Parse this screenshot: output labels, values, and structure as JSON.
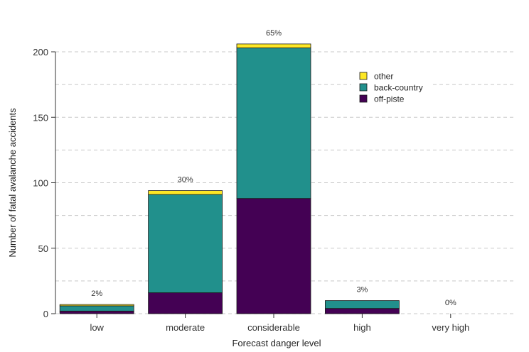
{
  "chart_data": {
    "type": "bar",
    "stacked": true,
    "categories": [
      "low",
      "moderate",
      "considerable",
      "high",
      "very high"
    ],
    "series": [
      {
        "name": "off-piste",
        "color": "#440154",
        "values": [
          2,
          16,
          88,
          4,
          0
        ]
      },
      {
        "name": "back-country",
        "color": "#21908C",
        "values": [
          4,
          75,
          115,
          6,
          0
        ]
      },
      {
        "name": "other",
        "color": "#FDE725",
        "values": [
          1,
          3,
          3,
          0,
          0
        ]
      }
    ],
    "percent_labels": [
      "2%",
      "30%",
      "65%",
      "3%",
      "0%"
    ],
    "xlabel": "Forecast danger level",
    "ylabel": "Number of fatal avalanche accidents",
    "ylim": [
      0,
      210
    ],
    "yticks": [
      0,
      50,
      100,
      150,
      200
    ],
    "grid": true,
    "legend_position": "top-right",
    "legend_order": [
      "other",
      "back-country",
      "off-piste"
    ]
  }
}
